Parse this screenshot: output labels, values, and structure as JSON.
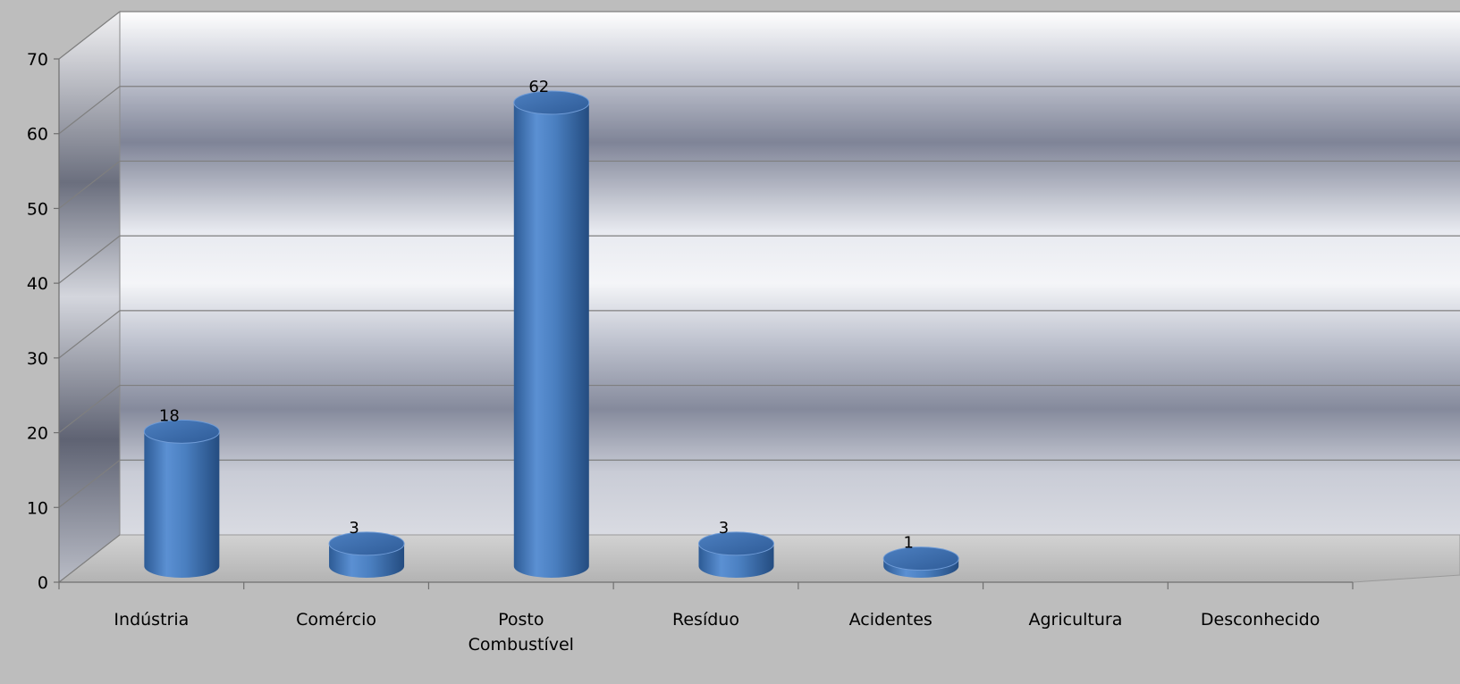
{
  "chart_data": {
    "type": "bar",
    "style": "3d-cylinder",
    "title": "",
    "xlabel": "",
    "ylabel": "",
    "categories": [
      [
        "Indústria"
      ],
      [
        "Comércio"
      ],
      [
        "Posto",
        "Combustível"
      ],
      [
        "Resíduo"
      ],
      [
        "Acidentes"
      ],
      [
        "Agricultura"
      ],
      [
        "Desconhecido"
      ]
    ],
    "values": [
      18,
      3,
      62,
      3,
      1,
      null,
      null
    ],
    "data_labels": [
      "18",
      "3",
      "62",
      "3",
      "1",
      "",
      ""
    ],
    "ylim": [
      0,
      70
    ],
    "yticks": [
      "0",
      "10",
      "20",
      "30",
      "40",
      "50",
      "60",
      "70"
    ],
    "grid": true,
    "legend": "none",
    "colors": {
      "bar": "#4f81bd",
      "bar_top": "#3b6aa8",
      "background": "#bdbdbd",
      "gridline": "#7f7f7f"
    }
  }
}
